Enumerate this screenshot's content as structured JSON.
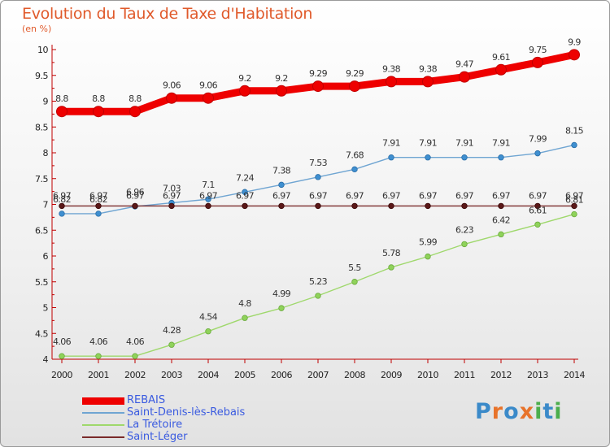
{
  "title": "Evolution du Taux de Taxe d'Habitation",
  "unit": "(en %)",
  "logo": "Proxiti",
  "chart_data": {
    "type": "line",
    "title": "Evolution du Taux de Taxe d'Habitation",
    "ylabel": "(en %)",
    "xlabel": "",
    "ylim": [
      4,
      10
    ],
    "y_ticks": [
      "4",
      "4.5",
      "5",
      "5.5",
      "6",
      "6.5",
      "7",
      "7.5",
      "8",
      "8.5",
      "9",
      "9.5",
      "10"
    ],
    "x": [
      "2000",
      "2001",
      "2002",
      "2003",
      "2004",
      "2005",
      "2006",
      "2007",
      "2008",
      "2009",
      "2010",
      "2011",
      "2012",
      "2013",
      "2014"
    ],
    "grid": false,
    "legend_position": "bottom-left",
    "series": [
      {
        "name": "REBAIS",
        "color": "#ee0000",
        "values": [
          8.8,
          8.8,
          8.8,
          9.06,
          9.06,
          9.2,
          9.2,
          9.29,
          9.29,
          9.38,
          9.38,
          9.47,
          9.61,
          9.75,
          9.9
        ]
      },
      {
        "name": "Saint-Denis-lès-Rebais",
        "color": "#6fa5d2",
        "values": [
          6.82,
          6.82,
          6.96,
          7.03,
          7.1,
          7.24,
          7.38,
          7.53,
          7.68,
          7.91,
          7.91,
          7.91,
          7.91,
          7.99,
          8.15
        ]
      },
      {
        "name": "La Trétoire",
        "color": "#9fd86c",
        "values": [
          4.06,
          4.06,
          4.06,
          4.28,
          4.54,
          4.8,
          4.99,
          5.23,
          5.5,
          5.78,
          5.99,
          6.23,
          6.42,
          6.61,
          6.81
        ]
      },
      {
        "name": "Saint-Léger",
        "color": "#7a2a2a",
        "values": [
          6.97,
          6.97,
          6.97,
          6.97,
          6.97,
          6.97,
          6.97,
          6.97,
          6.97,
          6.97,
          6.97,
          6.97,
          6.97,
          6.97,
          6.97
        ]
      }
    ],
    "data_labels": [
      [
        "8.8",
        "8.8",
        "8.8",
        "9.06",
        "9.06",
        "9.2",
        "9.2",
        "9.29",
        "9.29",
        "9.38",
        "9.38",
        "9.47",
        "9.61",
        "9.75",
        "9.9"
      ],
      [
        "6.82",
        "6.82",
        "6.96",
        "7.03",
        "7.1",
        "7.24",
        "7.38",
        "7.53",
        "7.68",
        "7.91",
        "7.91",
        "7.91",
        "7.91",
        "7.99",
        "8.15"
      ],
      [
        "4.06",
        "4.06",
        "4.06",
        "4.28",
        "4.54",
        "4.8",
        "4.99",
        "5.23",
        "5.5",
        "5.78",
        "5.99",
        "6.23",
        "6.42",
        "6.61",
        "6.81"
      ],
      [
        "6.97",
        "6.97",
        "6.97",
        "6.97",
        "6.97",
        "6.97",
        "6.97",
        "6.97",
        "6.97",
        "6.97",
        "6.97",
        "6.97",
        "6.97",
        "6.97",
        "6.97"
      ]
    ]
  }
}
